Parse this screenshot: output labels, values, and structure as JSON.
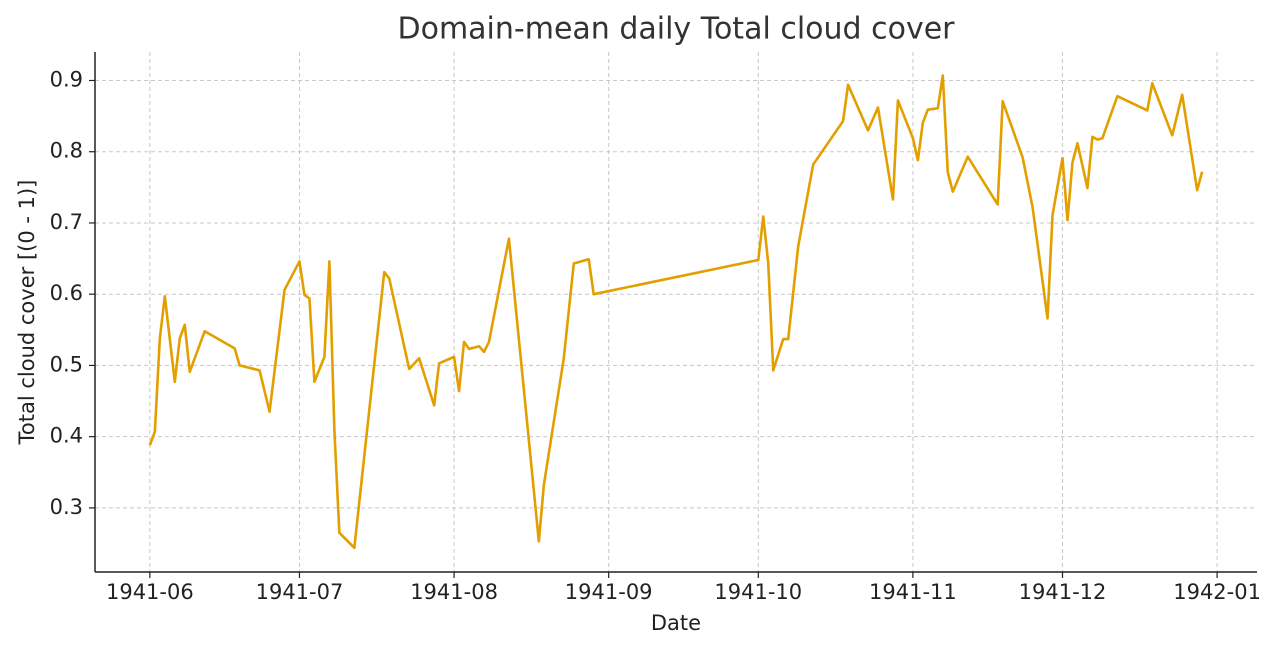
{
  "chart_data": {
    "type": "line",
    "title": "Domain-mean daily Total cloud cover",
    "xlabel": "Date",
    "ylabel": "Total cloud cover [(0 - 1)]",
    "color": "#e39f00",
    "grid": true,
    "xlim": [
      "1941-05-21",
      "1942-01-09"
    ],
    "ylim": [
      0.21,
      0.94
    ],
    "yticks": [
      0.3,
      0.4,
      0.5,
      0.6,
      0.7,
      0.8,
      0.9
    ],
    "xticks": [
      {
        "value": "1941-06-01",
        "label": "1941-06"
      },
      {
        "value": "1941-07-01",
        "label": "1941-07"
      },
      {
        "value": "1941-08-01",
        "label": "1941-08"
      },
      {
        "value": "1941-09-01",
        "label": "1941-09"
      },
      {
        "value": "1941-10-01",
        "label": "1941-10"
      },
      {
        "value": "1941-11-01",
        "label": "1941-11"
      },
      {
        "value": "1941-12-01",
        "label": "1941-12"
      },
      {
        "value": "1942-01-01",
        "label": "1942-01"
      }
    ],
    "x": [
      "1941-06-01",
      "1941-06-02",
      "1941-06-03",
      "1941-06-04",
      "1941-06-06",
      "1941-06-07",
      "1941-06-08",
      "1941-06-09",
      "1941-06-12",
      "1941-06-18",
      "1941-06-19",
      "1941-06-23",
      "1941-06-25",
      "1941-06-28",
      "1941-07-01",
      "1941-07-02",
      "1941-07-03",
      "1941-07-04",
      "1941-07-06",
      "1941-07-07",
      "1941-07-08",
      "1941-07-09",
      "1941-07-12",
      "1941-07-18",
      "1941-07-19",
      "1941-07-23",
      "1941-07-25",
      "1941-07-28",
      "1941-07-29",
      "1941-08-01",
      "1941-08-02",
      "1941-08-03",
      "1941-08-04",
      "1941-08-06",
      "1941-08-07",
      "1941-08-08",
      "1941-08-12",
      "1941-08-18",
      "1941-08-19",
      "1941-08-23",
      "1941-08-25",
      "1941-08-28",
      "1941-08-29",
      "1941-10-01",
      "1941-10-02",
      "1941-10-03",
      "1941-10-04",
      "1941-10-06",
      "1941-10-07",
      "1941-10-09",
      "1941-10-12",
      "1941-10-18",
      "1941-10-19",
      "1941-10-23",
      "1941-10-25",
      "1941-10-28",
      "1941-10-29",
      "1941-11-01",
      "1941-11-02",
      "1941-11-03",
      "1941-11-04",
      "1941-11-06",
      "1941-11-07",
      "1941-11-08",
      "1941-11-09",
      "1941-11-12",
      "1941-11-18",
      "1941-11-19",
      "1941-11-23",
      "1941-11-25",
      "1941-11-28",
      "1941-11-29",
      "1941-12-01",
      "1941-12-02",
      "1941-12-03",
      "1941-12-04",
      "1941-12-06",
      "1941-12-07",
      "1941-12-08",
      "1941-12-09",
      "1941-12-12",
      "1941-12-18",
      "1941-12-19",
      "1941-12-23",
      "1941-12-25",
      "1941-12-28",
      "1941-12-29"
    ],
    "values": [
      0.388,
      0.407,
      0.538,
      0.597,
      0.477,
      0.538,
      0.557,
      0.491,
      0.548,
      0.524,
      0.5,
      0.493,
      0.435,
      0.606,
      0.646,
      0.599,
      0.594,
      0.477,
      0.512,
      0.646,
      0.409,
      0.265,
      0.244,
      0.631,
      0.622,
      0.495,
      0.51,
      0.444,
      0.503,
      0.512,
      0.464,
      0.533,
      0.523,
      0.527,
      0.519,
      0.533,
      0.678,
      0.253,
      0.332,
      0.51,
      0.643,
      0.649,
      0.6,
      0.648,
      0.709,
      0.643,
      0.493,
      0.537,
      0.537,
      0.667,
      0.782,
      0.843,
      0.894,
      0.83,
      0.862,
      0.733,
      0.872,
      0.819,
      0.788,
      0.841,
      0.859,
      0.861,
      0.907,
      0.771,
      0.744,
      0.793,
      0.726,
      0.871,
      0.792,
      0.722,
      0.566,
      0.711,
      0.791,
      0.704,
      0.785,
      0.812,
      0.749,
      0.821,
      0.817,
      0.819,
      0.878,
      0.858,
      0.896,
      0.823,
      0.88,
      0.746,
      0.772
    ]
  }
}
